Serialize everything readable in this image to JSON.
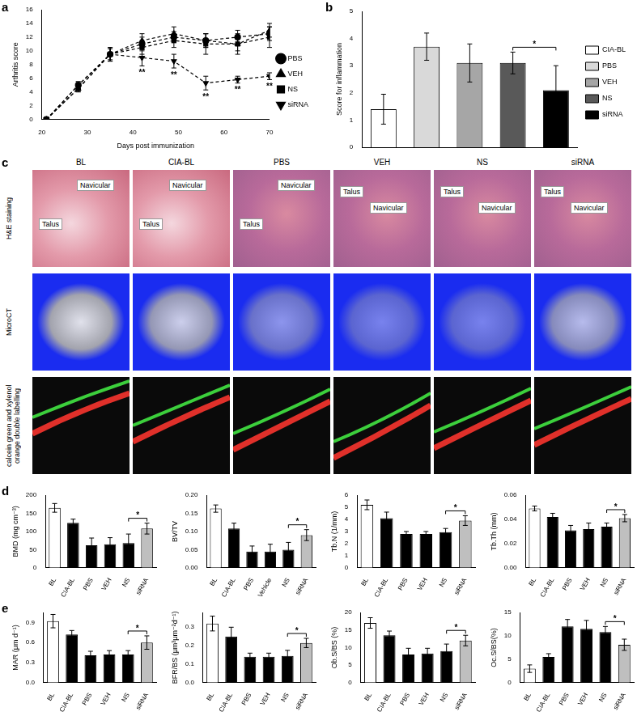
{
  "chart_data": [
    {
      "panel": "a",
      "type": "line",
      "x": [
        21,
        28,
        35,
        42,
        49,
        56,
        63,
        70
      ],
      "xlim": [
        20,
        70
      ],
      "xticks": [
        20,
        30,
        40,
        50,
        60,
        70
      ],
      "ylim": [
        0,
        16
      ],
      "yticks": [
        0,
        2,
        4,
        6,
        8,
        10,
        12,
        14,
        16
      ],
      "x_label": "Days post immunization",
      "y_label": "Arthritis score",
      "legend": "right",
      "grid": false,
      "series": [
        {
          "name": "PBS",
          "color": "#000000",
          "marker": "circle",
          "line_style": "dashed",
          "values": [
            0,
            5,
            9.5,
            11,
            12,
            11.5,
            12,
            12.5
          ],
          "errors": [
            0,
            0.5,
            1,
            1,
            0.8,
            1,
            1,
            1
          ]
        },
        {
          "name": "VEH",
          "color": "#000000",
          "marker": "triangle",
          "line_style": "dashed",
          "values": [
            0,
            4.5,
            9.5,
            11.5,
            12.5,
            11.5,
            11,
            13
          ],
          "errors": [
            0,
            0.5,
            1,
            1,
            1,
            1,
            1,
            1
          ]
        },
        {
          "name": "NS",
          "color": "#000000",
          "marker": "square",
          "line_style": "dashed",
          "values": [
            0,
            4.5,
            9.5,
            10.5,
            11.5,
            11,
            11,
            12
          ],
          "errors": [
            0,
            0.4,
            0.8,
            1,
            1,
            1.5,
            1.5,
            1.5
          ]
        },
        {
          "name": "siRNA",
          "color": "#000000",
          "marker": "triangle-down",
          "line_style": "dashed",
          "values": [
            0,
            5,
            9.5,
            9,
            8.5,
            5.3,
            5.8,
            6.3
          ],
          "errors": [
            0,
            0.5,
            1,
            1.2,
            1,
            1,
            0.5,
            0.5
          ]
        }
      ],
      "annotations": [
        {
          "series": "siRNA",
          "x": 42,
          "text": "**"
        },
        {
          "series": "siRNA",
          "x": 49,
          "text": "**"
        },
        {
          "series": "siRNA",
          "x": 56,
          "text": "**"
        },
        {
          "series": "siRNA",
          "x": 63,
          "text": "**"
        },
        {
          "series": "siRNA",
          "x": 70,
          "text": "**"
        }
      ]
    },
    {
      "panel": "b",
      "type": "bar",
      "categories": [
        "CIA-BL",
        "PBS",
        "VEH",
        "NS",
        "siRNA"
      ],
      "values": [
        1.4,
        3.7,
        3.1,
        3.1,
        2.1
      ],
      "errors": [
        0.55,
        0.5,
        0.7,
        0.4,
        0.9
      ],
      "colors": [
        "#ffffff",
        "#d9d9d9",
        "#a6a6a6",
        "#595959",
        "#000000"
      ],
      "ylim": [
        0,
        5
      ],
      "yticks": [
        0,
        1,
        2,
        3,
        4,
        5
      ],
      "y_label": "Score for inflammation",
      "legend": "right",
      "tick_labels": "y",
      "grid": false,
      "annotations": [
        {
          "from": "NS",
          "to": "siRNA",
          "text": "*"
        }
      ]
    },
    {
      "panel": "d",
      "type": "bar",
      "categories": [
        "BL",
        "CIA-BL",
        "PBS",
        "VEH",
        "NS",
        "siRNA"
      ],
      "values": [
        165,
        124,
        62,
        65,
        68,
        108
      ],
      "errors": [
        12,
        10,
        20,
        18,
        25,
        15
      ],
      "colors": [
        "#ffffff",
        "#000000",
        "#000000",
        "#000000",
        "#000000",
        "#bfbfbf"
      ],
      "ylim": [
        0,
        200
      ],
      "yticks": [
        0,
        50,
        100,
        150,
        200
      ],
      "y_label": "BMD (mg cm⁻³)",
      "grid": false,
      "annotations": [
        {
          "from": "NS",
          "to": "siRNA",
          "text": "*"
        }
      ]
    },
    {
      "type": "bar",
      "categories": [
        "BL",
        "CIA-BL",
        "PBS",
        "Vehicle",
        "NS",
        "siRNA"
      ],
      "values": [
        0.163,
        0.108,
        0.045,
        0.045,
        0.05,
        0.09
      ],
      "errors": [
        0.01,
        0.015,
        0.015,
        0.02,
        0.02,
        0.015
      ],
      "colors": [
        "#ffffff",
        "#000000",
        "#000000",
        "#000000",
        "#000000",
        "#bfbfbf"
      ],
      "ylim": [
        0,
        0.2
      ],
      "yticks": [
        {
          "value": 0,
          "label": "0.00"
        },
        0.05,
        {
          "value": 0.1,
          "label": "0.10"
        },
        0.15,
        {
          "value": 0.2,
          "label": "0.20"
        }
      ],
      "y_label": "BV/TV",
      "grid": false,
      "annotations": [
        {
          "from": "NS",
          "to": "siRNA",
          "text": "*"
        }
      ]
    },
    {
      "type": "bar",
      "categories": [
        "BL",
        "CIA-BL",
        "PBS",
        "VEH",
        "NS",
        "siRNA"
      ],
      "values": [
        5.2,
        4.1,
        2.8,
        2.8,
        2.95,
        3.9
      ],
      "errors": [
        0.4,
        0.5,
        0.2,
        0.2,
        0.3,
        0.4
      ],
      "colors": [
        "#ffffff",
        "#000000",
        "#000000",
        "#000000",
        "#000000",
        "#bfbfbf"
      ],
      "ylim": [
        0,
        6
      ],
      "yticks": [
        0,
        1,
        2,
        3,
        4,
        5,
        6
      ],
      "y_label": "Tb.N (1/mm)",
      "grid": false,
      "annotations": [
        {
          "from": "NS",
          "to": "siRNA",
          "text": "*"
        }
      ]
    },
    {
      "type": "bar",
      "categories": [
        "BL",
        "CIA-BL",
        "PBS",
        "VEH",
        "NS",
        "siRNA"
      ],
      "values": [
        0.049,
        0.042,
        0.031,
        0.032,
        0.034,
        0.041
      ],
      "errors": [
        0.002,
        0.003,
        0.004,
        0.005,
        0.003,
        0.003
      ],
      "colors": [
        "#ffffff",
        "#000000",
        "#000000",
        "#000000",
        "#000000",
        "#bfbfbf"
      ],
      "ylim": [
        0,
        0.06
      ],
      "yticks": [
        {
          "value": 0,
          "label": "0.00"
        },
        0.02,
        0.04,
        0.06
      ],
      "y_label": "Tb.Th (mm)",
      "grid": false,
      "annotations": [
        {
          "from": "NS",
          "to": "siRNA",
          "text": "*"
        }
      ]
    },
    {
      "panel": "e",
      "type": "bar",
      "categories": [
        "BL",
        "CIA-BL",
        "PBS",
        "VEH",
        "NS",
        "siRNA"
      ],
      "values": [
        0.92,
        0.72,
        0.41,
        0.42,
        0.42,
        0.6
      ],
      "errors": [
        0.1,
        0.06,
        0.06,
        0.06,
        0.06,
        0.1
      ],
      "colors": [
        "#ffffff",
        "#000000",
        "#000000",
        "#000000",
        "#000000",
        "#bfbfbf"
      ],
      "ylim": [
        0,
        1.05
      ],
      "yticks": [
        {
          "value": 0,
          "label": "0.0"
        },
        0.3,
        0.6,
        0.9
      ],
      "y_label": "MAR (μm d⁻¹)",
      "grid": false,
      "annotations": [
        {
          "from": "NS",
          "to": "siRNA",
          "text": "*"
        }
      ]
    },
    {
      "type": "bar",
      "categories": [
        "BL",
        "CIA-BL",
        "PBS",
        "VEH",
        "NS",
        "siRNA"
      ],
      "values": [
        0.32,
        0.25,
        0.14,
        0.14,
        0.145,
        0.215
      ],
      "errors": [
        0.04,
        0.05,
        0.02,
        0.02,
        0.03,
        0.025
      ],
      "colors": [
        "#ffffff",
        "#000000",
        "#000000",
        "#000000",
        "#000000",
        "#bfbfbf"
      ],
      "ylim": [
        0,
        0.38
      ],
      "yticks": [
        {
          "value": 0,
          "label": "0.0"
        },
        0.1,
        0.2,
        0.3
      ],
      "y_label": "BFR/BS (μm³μm⁻²d⁻¹)",
      "grid": false,
      "annotations": [
        {
          "from": "NS",
          "to": "siRNA",
          "text": "*"
        }
      ]
    },
    {
      "type": "bar",
      "categories": [
        "BL",
        "CIA-BL",
        "PBS",
        "VEH",
        "NS",
        "siRNA"
      ],
      "values": [
        17,
        13.5,
        8,
        8.3,
        9,
        12
      ],
      "errors": [
        1.5,
        1.2,
        1.8,
        1.5,
        2,
        1.5
      ],
      "colors": [
        "#ffffff",
        "#000000",
        "#000000",
        "#000000",
        "#000000",
        "#bfbfbf"
      ],
      "ylim": [
        0,
        20
      ],
      "yticks": [
        0,
        5,
        10,
        15,
        20
      ],
      "y_label": "Ob.S/BS (%)",
      "grid": false,
      "annotations": [
        {
          "from": "NS",
          "to": "siRNA",
          "text": "*"
        }
      ]
    },
    {
      "type": "bar",
      "categories": [
        "BL",
        "CIA-BL",
        "PBS",
        "VEH",
        "NS",
        "siRNA"
      ],
      "values": [
        3,
        5.5,
        12,
        11.5,
        10.8,
        8.1
      ],
      "errors": [
        0.8,
        0.7,
        1.5,
        1.8,
        1.2,
        1.2
      ],
      "colors": [
        "#ffffff",
        "#000000",
        "#000000",
        "#000000",
        "#000000",
        "#bfbfbf"
      ],
      "ylim": [
        0,
        15
      ],
      "yticks": [
        0,
        5,
        10,
        15
      ],
      "y_label": "Oc.S/BS(%)",
      "grid": false,
      "annotations": [
        {
          "from": "NS",
          "to": "siRNA",
          "text": "*"
        }
      ]
    }
  ],
  "image_panel": {
    "panel": "c",
    "columns": [
      "BL",
      "CIA-BL",
      "PBS",
      "VEH",
      "NS",
      "siRNA"
    ],
    "rows": [
      "H&E staining",
      "MicroCT",
      "calcein green and xylenol orange double labelling"
    ],
    "bone_labels": [
      "Navicular",
      "Talus"
    ]
  }
}
